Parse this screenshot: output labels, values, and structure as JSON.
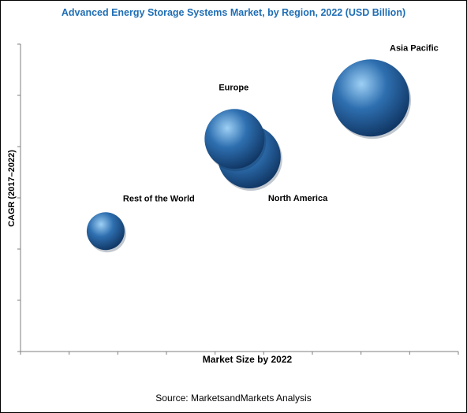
{
  "chart_data": {
    "type": "bubble",
    "title": "Advanced Energy Storage Systems Market, by Region, 2022 (USD Billion)",
    "xlabel": "Market Size by 2022",
    "ylabel": "CAGR (2017–2022)",
    "xlim": [
      0,
      9
    ],
    "ylim": [
      0,
      6
    ],
    "x_ticks_count": 9,
    "y_ticks_count": 6,
    "grid": false,
    "series": [
      {
        "name": "Asia Pacific",
        "x": 7.2,
        "y": 4.95,
        "size": 49,
        "label": "Asia Pacific"
      },
      {
        "name": "North America",
        "x": 4.7,
        "y": 3.8,
        "size": 40,
        "label": "North America"
      },
      {
        "name": "Europe",
        "x": 4.4,
        "y": 4.15,
        "size": 38,
        "label": "Europe"
      },
      {
        "name": "Rest of the World",
        "x": 1.75,
        "y": 2.35,
        "size": 24,
        "label": "Rest of the World"
      }
    ],
    "colors": {
      "bubble": "#2e6fb0",
      "bubble_light": "#9ed0f5",
      "bubble_dark": "#0f3461",
      "title": "#1f6eb5",
      "axis": "#7f7f7f"
    }
  },
  "footer": {
    "source": "Source: MarketsandMarkets Analysis"
  }
}
